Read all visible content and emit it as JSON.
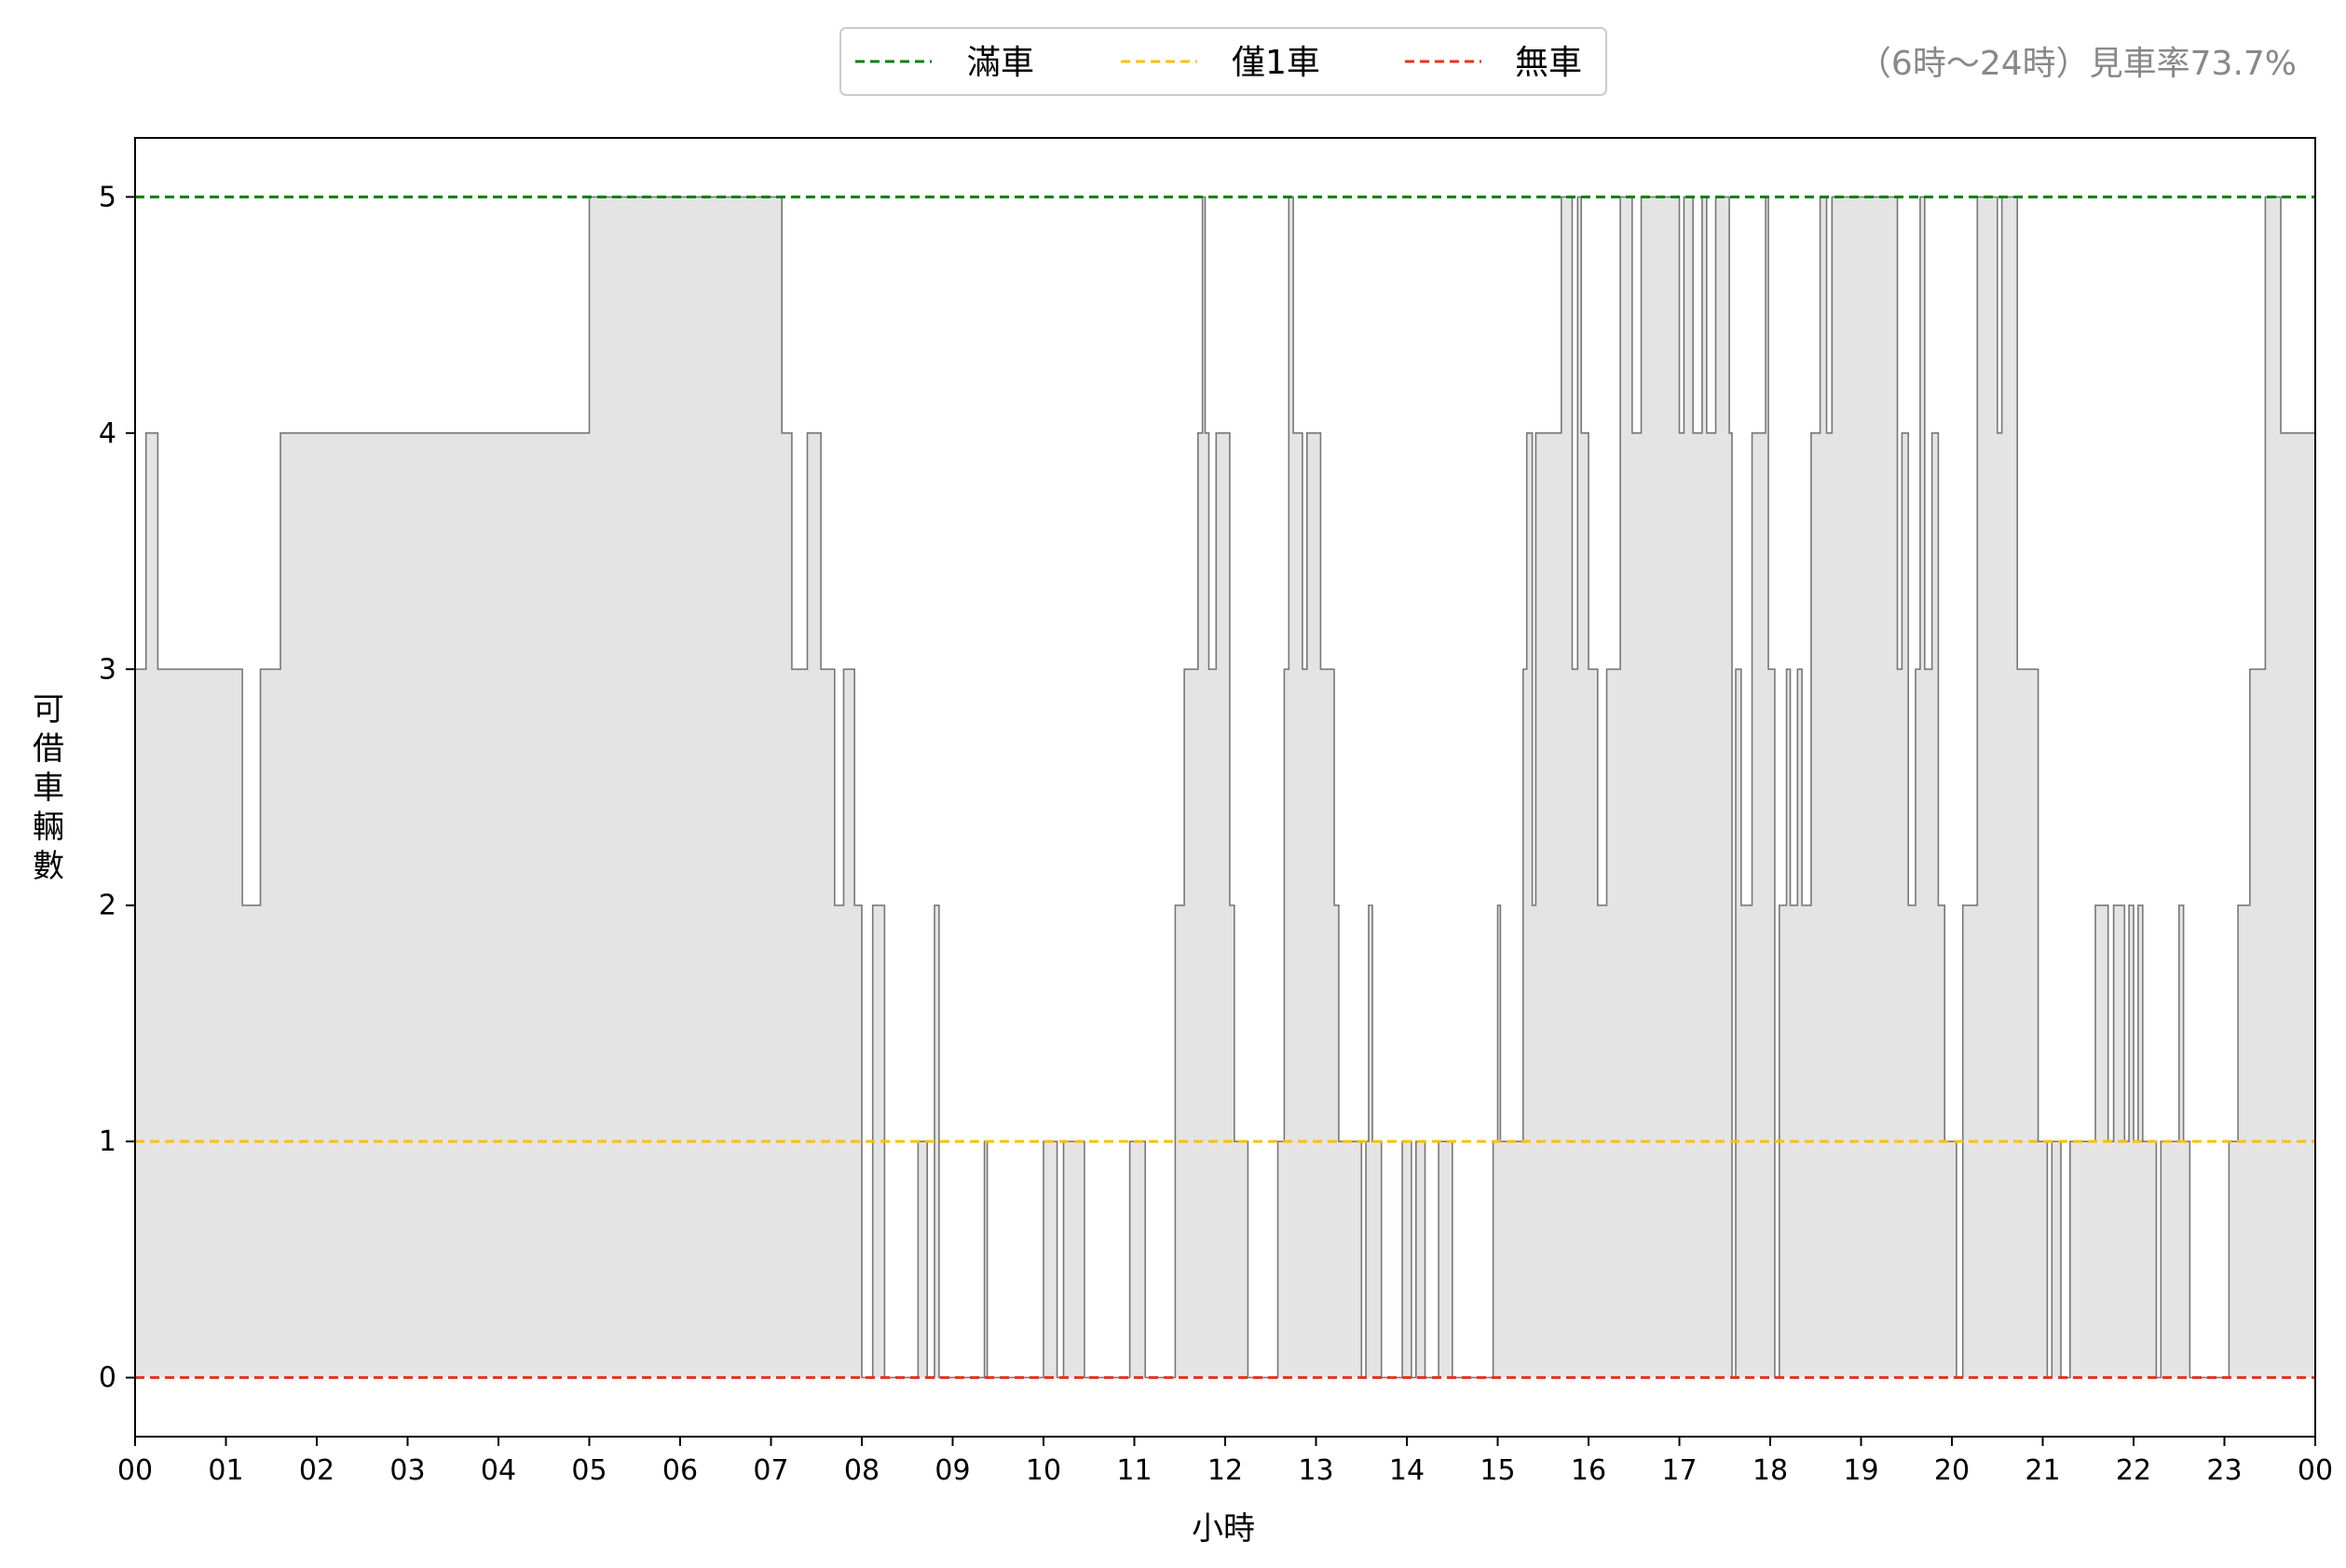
{
  "chart_data": {
    "type": "area",
    "step": true,
    "xlabel": "小時",
    "ylabel": "可借車輛數",
    "xlim": [
      0,
      24
    ],
    "ylim": [
      -0.25,
      5.25
    ],
    "x_tick_labels": [
      "00",
      "01",
      "02",
      "03",
      "04",
      "05",
      "06",
      "07",
      "08",
      "09",
      "10",
      "11",
      "12",
      "13",
      "14",
      "15",
      "16",
      "17",
      "18",
      "19",
      "20",
      "21",
      "22",
      "23",
      "00"
    ],
    "y_ticks": [
      0,
      1,
      2,
      3,
      4,
      5
    ],
    "grid": false,
    "legend_position": "top-center",
    "note": "（6時～24時）見車率73.7%",
    "reference_lines": [
      {
        "label": "滿車",
        "y": 5,
        "color": "#008000",
        "style": "dashed"
      },
      {
        "label": "僅1車",
        "y": 1,
        "color": "#FFBF00",
        "style": "dashed"
      },
      {
        "label": "無車",
        "y": 0,
        "color": "#E8311C",
        "style": "dashed"
      }
    ],
    "area_fill": "#E4E4E4",
    "line_color": "#777777",
    "series": [
      {
        "points": [
          [
            0.0,
            3
          ],
          [
            0.12,
            4
          ],
          [
            0.25,
            3
          ],
          [
            1.18,
            2
          ],
          [
            1.38,
            3
          ],
          [
            1.6,
            4
          ],
          [
            5.0,
            5
          ],
          [
            7.12,
            4
          ],
          [
            7.23,
            3
          ],
          [
            7.4,
            4
          ],
          [
            7.55,
            3
          ],
          [
            7.7,
            2
          ],
          [
            7.8,
            3
          ],
          [
            7.92,
            2
          ],
          [
            8.0,
            0
          ],
          [
            8.12,
            2
          ],
          [
            8.25,
            0
          ],
          [
            8.62,
            1
          ],
          [
            8.72,
            0
          ],
          [
            8.8,
            2
          ],
          [
            8.85,
            0
          ],
          [
            9.35,
            1
          ],
          [
            9.38,
            0
          ],
          [
            10.0,
            1
          ],
          [
            10.15,
            0
          ],
          [
            10.22,
            1
          ],
          [
            10.45,
            0
          ],
          [
            10.95,
            1
          ],
          [
            11.12,
            0
          ],
          [
            11.45,
            2
          ],
          [
            11.55,
            3
          ],
          [
            11.7,
            4
          ],
          [
            11.75,
            5
          ],
          [
            11.78,
            4
          ],
          [
            11.82,
            3
          ],
          [
            11.9,
            4
          ],
          [
            12.05,
            2
          ],
          [
            12.1,
            1
          ],
          [
            12.25,
            0
          ],
          [
            12.58,
            1
          ],
          [
            12.65,
            3
          ],
          [
            12.7,
            5
          ],
          [
            12.75,
            4
          ],
          [
            12.85,
            3
          ],
          [
            12.9,
            4
          ],
          [
            13.05,
            3
          ],
          [
            13.2,
            2
          ],
          [
            13.25,
            1
          ],
          [
            13.5,
            0
          ],
          [
            13.55,
            1
          ],
          [
            13.58,
            2
          ],
          [
            13.62,
            1
          ],
          [
            13.72,
            0
          ],
          [
            13.95,
            1
          ],
          [
            14.05,
            0
          ],
          [
            14.1,
            1
          ],
          [
            14.2,
            0
          ],
          [
            14.35,
            1
          ],
          [
            14.5,
            0
          ],
          [
            14.95,
            1
          ],
          [
            15.0,
            2
          ],
          [
            15.03,
            1
          ],
          [
            15.28,
            3
          ],
          [
            15.32,
            4
          ],
          [
            15.38,
            2
          ],
          [
            15.42,
            4
          ],
          [
            15.7,
            5
          ],
          [
            15.82,
            3
          ],
          [
            15.88,
            5
          ],
          [
            15.92,
            4
          ],
          [
            16.0,
            3
          ],
          [
            16.1,
            2
          ],
          [
            16.2,
            3
          ],
          [
            16.35,
            5
          ],
          [
            16.48,
            4
          ],
          [
            16.58,
            5
          ],
          [
            17.0,
            4
          ],
          [
            17.05,
            5
          ],
          [
            17.15,
            4
          ],
          [
            17.25,
            5
          ],
          [
            17.3,
            4
          ],
          [
            17.4,
            5
          ],
          [
            17.55,
            4
          ],
          [
            17.58,
            0
          ],
          [
            17.62,
            3
          ],
          [
            17.68,
            2
          ],
          [
            17.8,
            4
          ],
          [
            17.95,
            5
          ],
          [
            17.98,
            3
          ],
          [
            18.05,
            0
          ],
          [
            18.1,
            2
          ],
          [
            18.18,
            3
          ],
          [
            18.22,
            2
          ],
          [
            18.3,
            3
          ],
          [
            18.35,
            2
          ],
          [
            18.45,
            4
          ],
          [
            18.55,
            5
          ],
          [
            18.62,
            4
          ],
          [
            18.68,
            5
          ],
          [
            18.85,
            5
          ],
          [
            19.4,
            3
          ],
          [
            19.45,
            4
          ],
          [
            19.52,
            2
          ],
          [
            19.6,
            3
          ],
          [
            19.65,
            5
          ],
          [
            19.7,
            3
          ],
          [
            19.78,
            4
          ],
          [
            19.85,
            2
          ],
          [
            19.92,
            1
          ],
          [
            20.05,
            0
          ],
          [
            20.12,
            2
          ],
          [
            20.28,
            5
          ],
          [
            20.5,
            4
          ],
          [
            20.55,
            5
          ],
          [
            20.72,
            3
          ],
          [
            20.95,
            1
          ],
          [
            21.05,
            0
          ],
          [
            21.1,
            1
          ],
          [
            21.2,
            0
          ],
          [
            21.3,
            1
          ],
          [
            21.58,
            2
          ],
          [
            21.72,
            1
          ],
          [
            21.78,
            2
          ],
          [
            21.9,
            1
          ],
          [
            21.95,
            2
          ],
          [
            22.0,
            1
          ],
          [
            22.05,
            2
          ],
          [
            22.1,
            1
          ],
          [
            22.25,
            0
          ],
          [
            22.3,
            1
          ],
          [
            22.5,
            2
          ],
          [
            22.55,
            1
          ],
          [
            22.62,
            0
          ],
          [
            23.05,
            1
          ],
          [
            23.15,
            2
          ],
          [
            23.28,
            3
          ],
          [
            23.45,
            5
          ],
          [
            23.62,
            4
          ],
          [
            24.0,
            4
          ]
        ]
      }
    ]
  }
}
